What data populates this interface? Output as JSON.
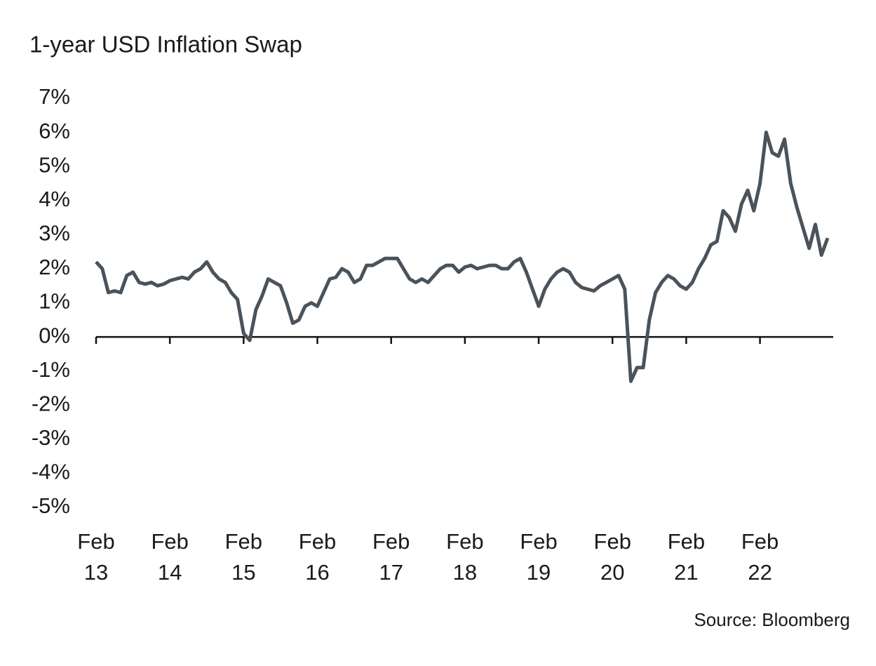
{
  "chart_data": {
    "type": "line",
    "title": "1-year USD Inflation Swap",
    "source": "Source: Bloomberg",
    "x": [
      "Feb 13",
      "Mar 13",
      "Apr 13",
      "May 13",
      "Jun 13",
      "Jul 13",
      "Aug 13",
      "Sep 13",
      "Oct 13",
      "Nov 13",
      "Dec 13",
      "Jan 14",
      "Feb 14",
      "Mar 14",
      "Apr 14",
      "May 14",
      "Jun 14",
      "Jul 14",
      "Aug 14",
      "Sep 14",
      "Oct 14",
      "Nov 14",
      "Dec 14",
      "Jan 15",
      "Feb 15",
      "Mar 15",
      "Apr 15",
      "May 15",
      "Jun 15",
      "Jul 15",
      "Aug 15",
      "Sep 15",
      "Oct 15",
      "Nov 15",
      "Dec 15",
      "Jan 16",
      "Feb 16",
      "Mar 16",
      "Apr 16",
      "May 16",
      "Jun 16",
      "Jul 16",
      "Aug 16",
      "Sep 16",
      "Oct 16",
      "Nov 16",
      "Dec 16",
      "Jan 17",
      "Feb 17",
      "Mar 17",
      "Apr 17",
      "May 17",
      "Jun 17",
      "Jul 17",
      "Aug 17",
      "Sep 17",
      "Oct 17",
      "Nov 17",
      "Dec 17",
      "Jan 18",
      "Feb 18",
      "Mar 18",
      "Apr 18",
      "May 18",
      "Jun 18",
      "Jul 18",
      "Aug 18",
      "Sep 18",
      "Oct 18",
      "Nov 18",
      "Dec 18",
      "Jan 19",
      "Feb 19",
      "Mar 19",
      "Apr 19",
      "May 19",
      "Jun 19",
      "Jul 19",
      "Aug 19",
      "Sep 19",
      "Oct 19",
      "Nov 19",
      "Dec 19",
      "Jan 20",
      "Feb 20",
      "Mar 20",
      "Apr 20",
      "May 20",
      "Jun 20",
      "Jul 20",
      "Aug 20",
      "Sep 20",
      "Oct 20",
      "Nov 20",
      "Dec 20",
      "Jan 21",
      "Feb 21",
      "Mar 21",
      "Apr 21",
      "May 21",
      "Jun 21",
      "Jul 21",
      "Aug 21",
      "Sep 21",
      "Oct 21",
      "Nov 21",
      "Dec 21",
      "Jan 22",
      "Feb 22",
      "Mar 22",
      "Apr 22",
      "May 22",
      "Jun 22",
      "Jul 22",
      "Aug 22",
      "Sep 22",
      "Oct 22",
      "Nov 22",
      "Dec 22",
      "Jan 23"
    ],
    "series": [
      {
        "name": "1-year USD Inflation Swap",
        "color": "#4a535b",
        "values": [
          2.2,
          2.0,
          1.3,
          1.35,
          1.3,
          1.8,
          1.9,
          1.6,
          1.55,
          1.6,
          1.5,
          1.55,
          1.65,
          1.7,
          1.75,
          1.7,
          1.9,
          2.0,
          2.2,
          1.9,
          1.7,
          1.6,
          1.3,
          1.1,
          0.1,
          -0.1,
          0.8,
          1.2,
          1.7,
          1.6,
          1.5,
          1.0,
          0.4,
          0.5,
          0.9,
          1.0,
          0.9,
          1.3,
          1.7,
          1.75,
          2.0,
          1.9,
          1.6,
          1.7,
          2.1,
          2.1,
          2.2,
          2.3,
          2.3,
          2.3,
          2.0,
          1.7,
          1.6,
          1.7,
          1.6,
          1.8,
          2.0,
          2.1,
          2.1,
          1.9,
          2.05,
          2.1,
          2.0,
          2.05,
          2.1,
          2.1,
          2.0,
          2.0,
          2.2,
          2.3,
          1.9,
          1.4,
          0.9,
          1.4,
          1.7,
          1.9,
          2.0,
          1.9,
          1.6,
          1.45,
          1.4,
          1.35,
          1.5,
          1.6,
          1.7,
          1.8,
          1.4,
          -1.3,
          -0.9,
          -0.9,
          0.5,
          1.3,
          1.6,
          1.8,
          1.7,
          1.5,
          1.4,
          1.6,
          2.0,
          2.3,
          2.7,
          2.8,
          3.7,
          3.5,
          3.1,
          3.9,
          4.3,
          3.7,
          4.5,
          6.0,
          5.4,
          5.3,
          5.8,
          4.5,
          3.8,
          3.2,
          2.6,
          3.3,
          2.4,
          2.9
        ]
      }
    ],
    "xticks": [
      "Feb 13",
      "Feb 14",
      "Feb 15",
      "Feb 16",
      "Feb 17",
      "Feb 18",
      "Feb 19",
      "Feb 20",
      "Feb 21",
      "Feb 22"
    ],
    "ylim": [
      -5,
      7
    ],
    "yticks": [
      {
        "value": -5,
        "label": "-5%"
      },
      {
        "value": -4,
        "label": "-4%"
      },
      {
        "value": -3,
        "label": "-3%"
      },
      {
        "value": -2,
        "label": "-2%"
      },
      {
        "value": -1,
        "label": "-1%"
      },
      {
        "value": 0,
        "label": "0%"
      },
      {
        "value": 1,
        "label": "1%"
      },
      {
        "value": 2,
        "label": "2%"
      },
      {
        "value": 3,
        "label": "3%"
      },
      {
        "value": 4,
        "label": "4%"
      },
      {
        "value": 5,
        "label": "5%"
      },
      {
        "value": 6,
        "label": "6%"
      },
      {
        "value": 7,
        "label": "7%"
      }
    ],
    "grid": false
  }
}
